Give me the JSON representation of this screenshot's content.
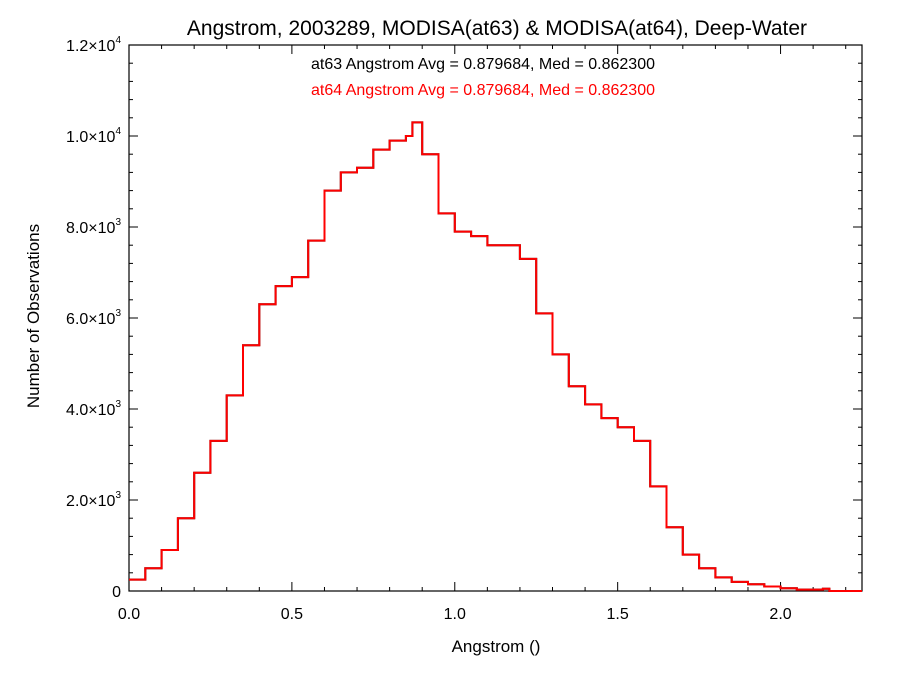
{
  "chart_data": {
    "type": "line",
    "step": true,
    "title": "Angstrom, 2003289, MODISA(at63) & MODISA(at64), Deep-Water",
    "xlabel": "Angstrom ()",
    "ylabel": "Number of Observations",
    "xlim": [
      0.0,
      2.25
    ],
    "ylim": [
      0,
      12000
    ],
    "grid": false,
    "colors": {
      "at63": "#000000",
      "at64": "#ff0000",
      "axes": "#000000"
    },
    "x_ticks": [
      {
        "value": 0.0,
        "label": "0.0"
      },
      {
        "value": 0.5,
        "label": "0.5"
      },
      {
        "value": 1.0,
        "label": "1.0"
      },
      {
        "value": 1.5,
        "label": "1.5"
      },
      {
        "value": 2.0,
        "label": "2.0"
      }
    ],
    "y_ticks": [
      {
        "value": 0,
        "mantissa": "0",
        "exponent": ""
      },
      {
        "value": 2000,
        "mantissa": "2.0×10",
        "exponent": "3"
      },
      {
        "value": 4000,
        "mantissa": "4.0×10",
        "exponent": "3"
      },
      {
        "value": 6000,
        "mantissa": "6.0×10",
        "exponent": "3"
      },
      {
        "value": 8000,
        "mantissa": "8.0×10",
        "exponent": "3"
      },
      {
        "value": 10000,
        "mantissa": "1.0×10",
        "exponent": "4"
      },
      {
        "value": 12000,
        "mantissa": "1.2×10",
        "exponent": "4"
      }
    ],
    "annotations": [
      {
        "text": "at63 Angstrom Avg = 0.879684, Med = 0.862300",
        "color": "#000000"
      },
      {
        "text": "at64 Angstrom Avg = 0.879684, Med = 0.862300",
        "color": "#ff0000"
      }
    ],
    "x": [
      0.0,
      0.05,
      0.1,
      0.15,
      0.2,
      0.25,
      0.3,
      0.35,
      0.4,
      0.45,
      0.5,
      0.55,
      0.6,
      0.65,
      0.7,
      0.75,
      0.8,
      0.85,
      0.87,
      0.9,
      0.95,
      1.0,
      1.05,
      1.1,
      1.15,
      1.2,
      1.25,
      1.3,
      1.35,
      1.4,
      1.45,
      1.5,
      1.55,
      1.6,
      1.65,
      1.7,
      1.75,
      1.8,
      1.85,
      1.9,
      1.95,
      2.0,
      2.05,
      2.1,
      2.13,
      2.15,
      2.25
    ],
    "series": [
      {
        "name": "at64",
        "color": "#ff0000",
        "values": [
          250,
          500,
          900,
          1600,
          2600,
          3300,
          4300,
          5400,
          6300,
          6700,
          6900,
          7700,
          8800,
          9200,
          9300,
          9700,
          9900,
          10000,
          10300,
          9600,
          8300,
          7900,
          7800,
          7600,
          7600,
          7300,
          6100,
          5200,
          4500,
          4100,
          3800,
          3600,
          3300,
          2300,
          1400,
          800,
          500,
          300,
          200,
          150,
          100,
          60,
          30,
          30,
          50,
          0,
          0
        ]
      },
      {
        "name": "at63",
        "color": "#000000",
        "values": [
          250,
          500,
          900,
          1600,
          2600,
          3300,
          4300,
          5400,
          6300,
          6700,
          6900,
          7700,
          8800,
          9200,
          9300,
          9700,
          9900,
          10000,
          10300,
          9600,
          8300,
          7900,
          7800,
          7600,
          7600,
          7300,
          6100,
          5200,
          4500,
          4100,
          3800,
          3600,
          3300,
          2300,
          1400,
          800,
          500,
          300,
          200,
          150,
          100,
          60,
          30,
          30,
          50,
          0,
          0
        ]
      }
    ]
  }
}
